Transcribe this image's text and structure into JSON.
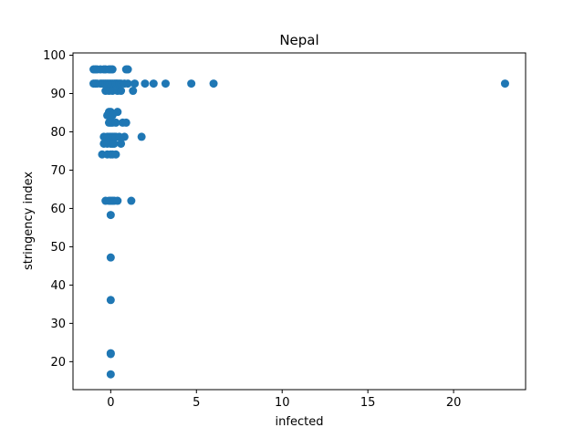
{
  "chart_data": {
    "type": "scatter",
    "title": "Nepal",
    "xlabel": "infected",
    "ylabel": "stringency index",
    "xlim": [
      -2.2,
      24.2
    ],
    "ylim": [
      12.7,
      100.6
    ],
    "xticks": [
      0,
      5,
      10,
      15,
      20
    ],
    "yticks": [
      20,
      30,
      40,
      50,
      60,
      70,
      80,
      90,
      100
    ],
    "grid": false,
    "marker_color": "#1f77b4",
    "series": [
      {
        "points": [
          [
            -1.0,
            96.3
          ],
          [
            -0.9,
            96.3
          ],
          [
            -0.8,
            96.3
          ],
          [
            -0.6,
            96.3
          ],
          [
            -0.4,
            96.3
          ],
          [
            -0.3,
            96.3
          ],
          [
            -0.1,
            96.3
          ],
          [
            0.0,
            96.3
          ],
          [
            0.1,
            96.3
          ],
          [
            0.9,
            96.3
          ],
          [
            1.0,
            96.3
          ],
          [
            -1.0,
            92.6
          ],
          [
            -0.9,
            92.6
          ],
          [
            -0.8,
            92.6
          ],
          [
            -0.6,
            92.6
          ],
          [
            -0.5,
            92.6
          ],
          [
            -0.4,
            92.6
          ],
          [
            -0.3,
            92.6
          ],
          [
            -0.2,
            92.6
          ],
          [
            -0.1,
            92.6
          ],
          [
            0.0,
            92.6
          ],
          [
            0.1,
            92.6
          ],
          [
            0.2,
            92.6
          ],
          [
            0.3,
            92.6
          ],
          [
            0.4,
            92.6
          ],
          [
            0.5,
            92.6
          ],
          [
            0.6,
            92.6
          ],
          [
            0.8,
            92.6
          ],
          [
            1.0,
            92.6
          ],
          [
            1.4,
            92.6
          ],
          [
            2.0,
            92.6
          ],
          [
            2.5,
            92.6
          ],
          [
            3.2,
            92.6
          ],
          [
            4.7,
            92.6
          ],
          [
            6.0,
            92.6
          ],
          [
            23.0,
            92.6
          ],
          [
            -0.3,
            90.7
          ],
          [
            -0.1,
            90.7
          ],
          [
            0.1,
            90.7
          ],
          [
            0.4,
            90.7
          ],
          [
            0.6,
            90.7
          ],
          [
            1.3,
            90.7
          ],
          [
            -0.1,
            85.2
          ],
          [
            0.0,
            85.2
          ],
          [
            0.4,
            85.2
          ],
          [
            -0.2,
            84.3
          ],
          [
            0.1,
            84.3
          ],
          [
            -0.1,
            82.4
          ],
          [
            0.0,
            82.4
          ],
          [
            0.1,
            82.4
          ],
          [
            0.3,
            82.4
          ],
          [
            0.7,
            82.4
          ],
          [
            0.9,
            82.4
          ],
          [
            -0.4,
            78.7
          ],
          [
            -0.2,
            78.7
          ],
          [
            -0.1,
            78.7
          ],
          [
            0.0,
            78.7
          ],
          [
            0.1,
            78.7
          ],
          [
            0.2,
            78.7
          ],
          [
            0.3,
            78.7
          ],
          [
            0.5,
            78.7
          ],
          [
            0.8,
            78.7
          ],
          [
            1.8,
            78.7
          ],
          [
            -0.4,
            76.9
          ],
          [
            -0.2,
            76.9
          ],
          [
            0.0,
            76.9
          ],
          [
            0.1,
            76.9
          ],
          [
            0.2,
            76.9
          ],
          [
            0.6,
            76.9
          ],
          [
            -0.5,
            74.1
          ],
          [
            -0.2,
            74.1
          ],
          [
            0.0,
            74.1
          ],
          [
            0.1,
            74.1
          ],
          [
            0.3,
            74.1
          ],
          [
            -0.3,
            62.0
          ],
          [
            -0.1,
            62.0
          ],
          [
            0.0,
            62.0
          ],
          [
            0.1,
            62.0
          ],
          [
            0.2,
            62.0
          ],
          [
            0.4,
            62.0
          ],
          [
            1.2,
            62.0
          ],
          [
            0.0,
            58.3
          ],
          [
            0.0,
            47.2
          ],
          [
            0.0,
            36.1
          ],
          [
            0.0,
            22.2
          ],
          [
            0.0,
            22.0
          ],
          [
            0.0,
            16.7
          ]
        ]
      }
    ]
  }
}
